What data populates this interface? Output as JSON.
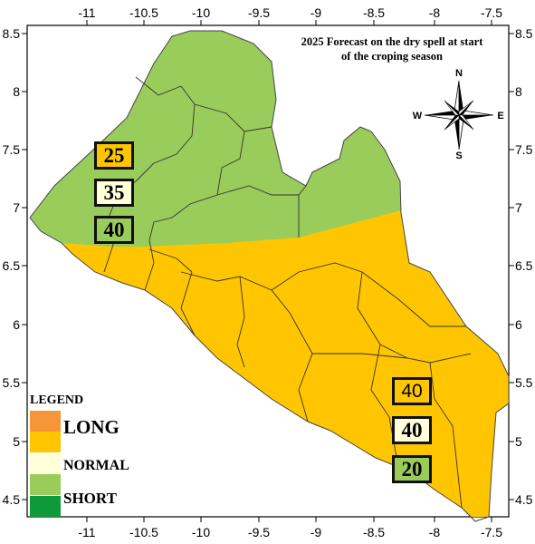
{
  "map": {
    "title_line1": "2025 Forecast on the dry spell at start",
    "title_line2": "of the croping season",
    "x_ticks": [
      "-11",
      "-10.5",
      "-10",
      "-9.5",
      "-9",
      "-8.5",
      "-8",
      "-7.5"
    ],
    "y_ticks": [
      "8.5",
      "8",
      "7.5",
      "7",
      "6.5",
      "6",
      "5.5",
      "5",
      "4.5"
    ],
    "compass": {
      "n": "N",
      "s": "S",
      "e": "E",
      "w": "W"
    },
    "zone_colors": {
      "short": "#9ACC5B",
      "normal_zone": "#FFC600",
      "boundary": "#333333"
    }
  },
  "probability_boxes": {
    "northwest": [
      {
        "value": "25",
        "color": "#FFC600"
      },
      {
        "value": "35",
        "color": "#FFFFDA"
      },
      {
        "value": "40",
        "color": "#9ACC5B"
      }
    ],
    "southeast": [
      {
        "value": "40",
        "color": "#FFC600"
      },
      {
        "value": "40",
        "color": "#FFFFDA"
      },
      {
        "value": "20",
        "color": "#9ACC5B"
      }
    ]
  },
  "legend": {
    "title": "LEGEND",
    "items": [
      {
        "label": "",
        "color": "#F5963A"
      },
      {
        "label": "LONG",
        "color": "#FFC600"
      },
      {
        "label": "NORMAL",
        "color": "#FFFFDA"
      },
      {
        "label": "SHORT",
        "color": "#9ACC5B"
      },
      {
        "label": "",
        "color": "#0E9A3A"
      }
    ]
  }
}
